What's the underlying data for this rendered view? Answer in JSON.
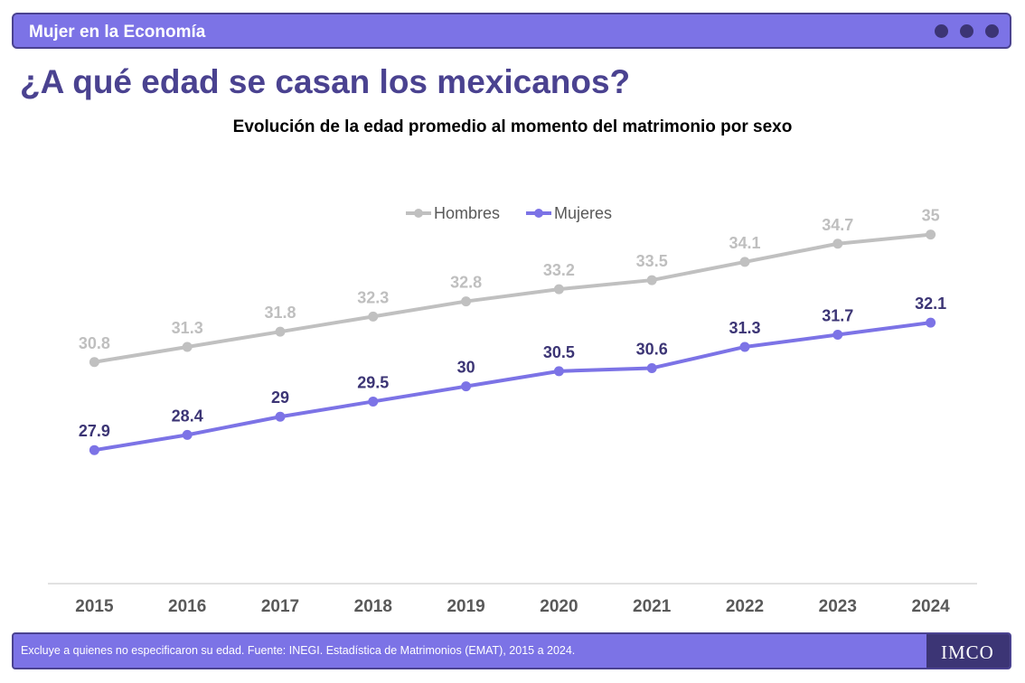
{
  "header": {
    "section_title": "Mujer en la Economía"
  },
  "page_title": "¿A qué edad se casan los mexicanos?",
  "chart_data": {
    "type": "line",
    "title": "Evolución de la edad promedio al momento del matrimonio por sexo",
    "xlabel": "",
    "ylabel": "",
    "categories": [
      "2015",
      "2016",
      "2017",
      "2018",
      "2019",
      "2020",
      "2021",
      "2022",
      "2023",
      "2024"
    ],
    "series": [
      {
        "name": "Hombres",
        "color": "#c0c0c0",
        "label_color": "#bfbfbf",
        "values": [
          30.8,
          31.3,
          31.8,
          32.3,
          32.8,
          33.2,
          33.5,
          34.1,
          34.7,
          35
        ]
      },
      {
        "name": "Mujeres",
        "color": "#7c73e6",
        "label_color": "#3c3575",
        "values": [
          27.9,
          28.4,
          29,
          29.5,
          30,
          30.5,
          30.6,
          31.3,
          31.7,
          32.1
        ]
      }
    ],
    "ylim": [
      23.5,
      36.3
    ],
    "grid": false,
    "legend": "top-center",
    "data_labels": true
  },
  "footer": {
    "source_note": "Excluye a quienes no especificaron su edad. Fuente: INEGI. Estadística de Matrimonios (EMAT), 2015 a 2024.",
    "logo": "IMCO"
  },
  "colors": {
    "accent": "#7c73e6",
    "dark_accent": "#4a4290",
    "dark": "#3c3575"
  }
}
